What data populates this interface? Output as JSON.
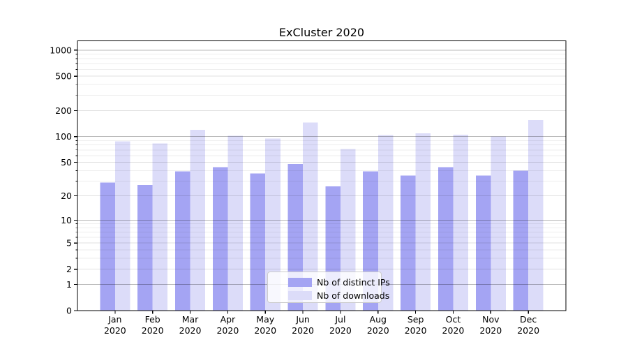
{
  "title": "ExCluster 2020",
  "chart_data": {
    "type": "bar",
    "title": "ExCluster 2020",
    "categories": [
      "Jan 2020",
      "Feb 2020",
      "Mar 2020",
      "Apr 2020",
      "May 2020",
      "Jun 2020",
      "Jul 2020",
      "Aug 2020",
      "Sep 2020",
      "Oct 2020",
      "Nov 2020",
      "Dec 2020"
    ],
    "series": [
      {
        "name": "Nb of distinct IPs",
        "color": "#a4a4f3",
        "values": [
          29,
          27,
          39,
          44,
          37,
          48,
          26,
          39,
          35,
          44,
          35,
          40
        ]
      },
      {
        "name": "Nb of downloads",
        "color": "#dcdcf9",
        "values": [
          88,
          83,
          120,
          102,
          95,
          146,
          72,
          104,
          109,
          105,
          100,
          156
        ]
      }
    ],
    "yscale": "symlog ln(1+x)",
    "ylim": [
      0,
      1280
    ],
    "yticks_major": [
      0,
      1,
      2,
      5,
      10,
      20,
      50,
      100,
      200,
      500,
      1000
    ],
    "yticks_minor": [
      3,
      4,
      6,
      7,
      8,
      9,
      30,
      40,
      60,
      70,
      80,
      90,
      300,
      400,
      600,
      700,
      800,
      900
    ],
    "xlabel": "",
    "ylabel": "",
    "grid": "on",
    "legend_position": "lower center"
  },
  "colors": {
    "background": "#ffffff",
    "spine": "#000000",
    "grid_strong": "rgba(0,0,0,0.28)",
    "grid_mid": "rgba(0,0,0,0.12)",
    "grid_minor": "rgba(0,0,0,0.065)",
    "strong_gridline_values": [
      1,
      10,
      100,
      1000
    ]
  }
}
